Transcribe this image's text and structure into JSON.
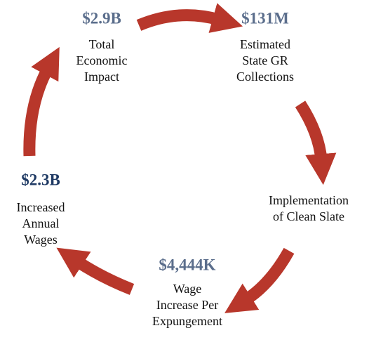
{
  "nodes": [
    {
      "value": "$2.9B",
      "label": [
        "Total",
        "Economic",
        "Impact"
      ]
    },
    {
      "value": "$131M",
      "label": [
        "Estimated",
        "State GR",
        "Collections"
      ]
    },
    {
      "label": [
        "Implementation",
        "of Clean Slate"
      ]
    },
    {
      "value": "$4,444K",
      "label": [
        "Wage",
        "Increase Per",
        "Expungement"
      ]
    },
    {
      "value": "$2.3B",
      "label": [
        "Increased",
        "Annual",
        "Wages"
      ]
    }
  ]
}
